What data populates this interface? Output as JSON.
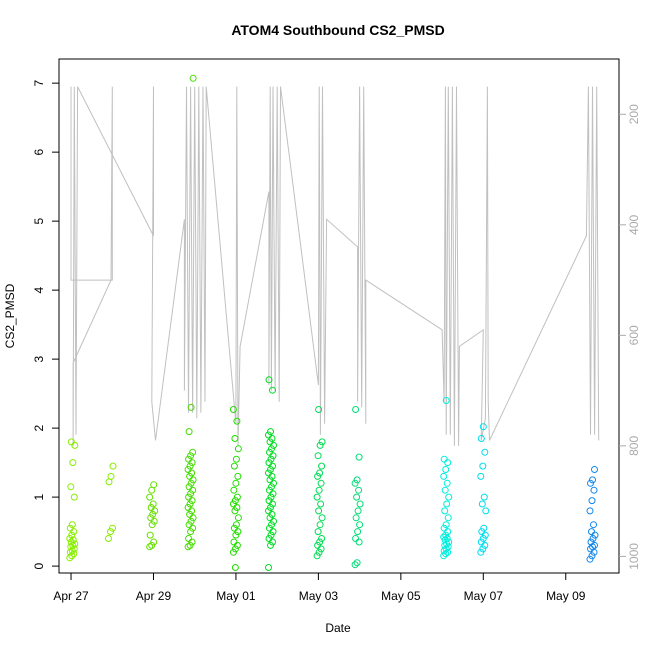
{
  "chart_data": {
    "type": "scatter",
    "title": "ATOM4 Southbound CS2_PMSD",
    "xlabel": "Date",
    "ylabel": "CS2_PMSD",
    "xlim": [
      "2024-04-26T17:00",
      "2024-05-10T07:00"
    ],
    "ylim": [
      -0.1,
      7.35
    ],
    "x_ticks": [
      {
        "date": "2024-04-27",
        "label": "Apr 27"
      },
      {
        "date": "2024-04-29",
        "label": "Apr 29"
      },
      {
        "date": "2024-05-01",
        "label": "May 01"
      },
      {
        "date": "2024-05-03",
        "label": "May 03"
      },
      {
        "date": "2024-05-05",
        "label": "May 05"
      },
      {
        "date": "2024-05-07",
        "label": "May 07"
      },
      {
        "date": "2024-05-09",
        "label": "May 09"
      }
    ],
    "y_ticks": [
      0,
      1,
      2,
      3,
      4,
      5,
      6,
      7
    ],
    "y2_axis": {
      "ticks": [
        200,
        400,
        600,
        800,
        1000
      ],
      "range_top_to_bottom": [
        100,
        1030
      ],
      "color": "#aaaaaa"
    },
    "grid": false,
    "marker": "open-circle",
    "clusters": [
      {
        "day": 0.03,
        "color": "#88ee00",
        "values": [
          0.12,
          0.15,
          0.18,
          0.2,
          0.22,
          0.25,
          0.28,
          0.3,
          0.32,
          0.35,
          0.38,
          0.4,
          0.45,
          0.5,
          0.55,
          0.6,
          1.0,
          1.15,
          1.5,
          1.75,
          1.8
        ]
      },
      {
        "day": 0.97,
        "color": "#88ee00",
        "values": [
          0.4,
          0.5,
          0.55,
          1.22,
          1.3,
          1.45
        ]
      },
      {
        "day": 1.97,
        "color": "#66e000",
        "values": [
          0.28,
          0.3,
          0.35,
          0.45,
          0.6,
          0.65,
          0.7,
          0.75,
          0.8,
          0.85,
          0.9,
          1.0,
          1.1,
          1.18
        ]
      },
      {
        "day": 2.9,
        "color": "#44dd00",
        "values": [
          0.28,
          0.3,
          0.35,
          0.4,
          0.5,
          0.55,
          0.6,
          0.65,
          0.7,
          0.75,
          0.8,
          0.85,
          0.9,
          0.95,
          1.0,
          1.05,
          1.1,
          1.15,
          1.2,
          1.25,
          1.3,
          1.35,
          1.4,
          1.45,
          1.5,
          1.55,
          1.6,
          1.65,
          1.95,
          2.3,
          7.07
        ]
      },
      {
        "day": 4.0,
        "color": "#22dd00",
        "values": [
          0.2,
          0.25,
          0.3,
          0.35,
          0.45,
          0.5,
          0.55,
          0.6,
          0.7,
          0.8,
          0.85,
          0.9,
          0.95,
          1.0,
          1.1,
          1.2,
          1.3,
          1.45,
          1.55,
          1.7,
          1.85,
          2.1,
          2.27,
          -0.02
        ]
      },
      {
        "day": 4.85,
        "color": "#00dd22",
        "values": [
          -0.02,
          0.3,
          0.35,
          0.4,
          0.45,
          0.5,
          0.55,
          0.6,
          0.65,
          0.7,
          0.75,
          0.8,
          0.85,
          0.9,
          0.95,
          1.0,
          1.05,
          1.1,
          1.15,
          1.2,
          1.25,
          1.3,
          1.35,
          1.4,
          1.45,
          1.5,
          1.55,
          1.6,
          1.65,
          1.7,
          1.75,
          1.8,
          1.85,
          1.9,
          1.95,
          2.55,
          2.7
        ]
      },
      {
        "day": 6.03,
        "color": "#00dd55",
        "values": [
          0.15,
          0.2,
          0.25,
          0.3,
          0.35,
          0.4,
          0.5,
          0.6,
          0.7,
          0.8,
          0.9,
          1.0,
          1.1,
          1.2,
          1.3,
          1.35,
          1.45,
          1.6,
          1.75,
          1.8,
          2.27
        ]
      },
      {
        "day": 6.95,
        "color": "#00dd77",
        "values": [
          0.02,
          0.05,
          0.35,
          0.4,
          0.5,
          0.6,
          0.7,
          0.8,
          0.9,
          1.0,
          1.1,
          1.2,
          1.25,
          1.58,
          2.27
        ]
      },
      {
        "day": 9.1,
        "color": "#00eedd",
        "values": [
          0.15,
          0.18,
          0.2,
          0.22,
          0.25,
          0.28,
          0.3,
          0.32,
          0.35,
          0.38,
          0.4,
          0.42,
          0.45,
          0.5,
          0.55,
          0.6,
          0.7,
          0.8,
          0.9,
          1.0,
          1.1,
          1.2,
          1.3,
          1.4,
          1.5,
          1.55,
          2.4
        ]
      },
      {
        "day": 10.0,
        "color": "#00ddee",
        "values": [
          0.2,
          0.25,
          0.3,
          0.35,
          0.4,
          0.45,
          0.5,
          0.55,
          0.8,
          0.9,
          1.0,
          1.3,
          1.45,
          1.65,
          1.85,
          2.02
        ]
      },
      {
        "day": 12.65,
        "color": "#1188ee",
        "values": [
          0.1,
          0.15,
          0.2,
          0.25,
          0.28,
          0.3,
          0.35,
          0.4,
          0.45,
          0.5,
          0.6,
          0.8,
          0.95,
          1.1,
          1.2,
          1.25,
          1.4
        ]
      }
    ],
    "overlay_line": {
      "color": "#c0c0c0",
      "points": [
        [
          0.0,
          150
        ],
        [
          0.0,
          500
        ],
        [
          1.0,
          500
        ],
        [
          1.0,
          150
        ],
        [
          0.97,
          500
        ],
        [
          0.05,
          650
        ],
        [
          0.05,
          800
        ],
        [
          0.08,
          150
        ],
        [
          0.12,
          780
        ],
        [
          0.16,
          150
        ],
        [
          2.0,
          420
        ],
        [
          2.0,
          150
        ],
        [
          1.96,
          720
        ],
        [
          2.05,
          790
        ],
        [
          2.75,
          390
        ],
        [
          2.75,
          700
        ],
        [
          2.8,
          150
        ],
        [
          2.85,
          740
        ],
        [
          2.9,
          150
        ],
        [
          2.95,
          740
        ],
        [
          3.0,
          150
        ],
        [
          3.05,
          750
        ],
        [
          3.1,
          150
        ],
        [
          3.15,
          740
        ],
        [
          3.2,
          150
        ],
        [
          3.25,
          720
        ],
        [
          3.28,
          150
        ],
        [
          4.0,
          760
        ],
        [
          4.02,
          150
        ],
        [
          4.05,
          800
        ],
        [
          4.1,
          620
        ],
        [
          4.8,
          340
        ],
        [
          4.8,
          690
        ],
        [
          4.83,
          150
        ],
        [
          4.86,
          700
        ],
        [
          4.9,
          150
        ],
        [
          4.95,
          700
        ],
        [
          5.0,
          150
        ],
        [
          5.05,
          720
        ],
        [
          5.08,
          150
        ],
        [
          6.0,
          690
        ],
        [
          6.02,
          150
        ],
        [
          6.05,
          780
        ],
        [
          6.1,
          150
        ],
        [
          6.15,
          760
        ],
        [
          6.2,
          390
        ],
        [
          6.95,
          440
        ],
        [
          6.95,
          720
        ],
        [
          7.0,
          150
        ],
        [
          7.05,
          730
        ],
        [
          7.1,
          150
        ],
        [
          7.15,
          760
        ],
        [
          7.15,
          500
        ],
        [
          9.0,
          590
        ],
        [
          9.05,
          720
        ],
        [
          9.08,
          150
        ],
        [
          9.1,
          780
        ],
        [
          9.15,
          150
        ],
        [
          9.2,
          780
        ],
        [
          9.25,
          150
        ],
        [
          9.3,
          800
        ],
        [
          9.35,
          150
        ],
        [
          9.4,
          800
        ],
        [
          9.42,
          620
        ],
        [
          10.0,
          590
        ],
        [
          9.95,
          790
        ],
        [
          10.05,
          750
        ],
        [
          10.1,
          150
        ],
        [
          10.12,
          720
        ],
        [
          10.15,
          790
        ],
        [
          12.5,
          420
        ],
        [
          12.55,
          150
        ],
        [
          12.6,
          780
        ],
        [
          12.65,
          150
        ],
        [
          12.7,
          780
        ],
        [
          12.75,
          150
        ],
        [
          12.8,
          790
        ]
      ]
    }
  }
}
